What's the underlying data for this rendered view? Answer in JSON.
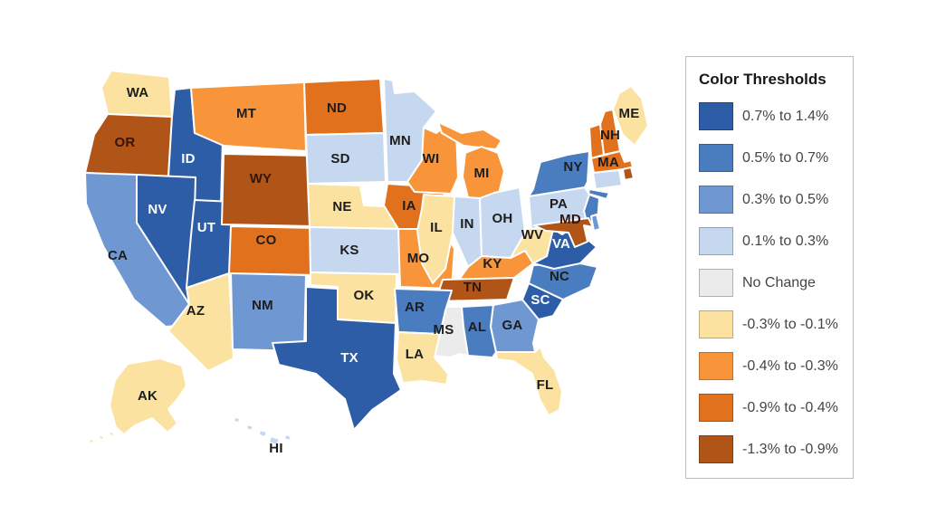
{
  "legend": {
    "title": "Color Thresholds"
  },
  "chart_data": {
    "type": "choropleth",
    "geography": "United States",
    "legend_title": "Color Thresholds",
    "legend_position": "right",
    "buckets": [
      {
        "range": "0.7% to 1.4%",
        "color": "#2d5da6"
      },
      {
        "range": "0.5% to 0.7%",
        "color": "#4a7cc0"
      },
      {
        "range": "0.3% to 0.5%",
        "color": "#6f98d3"
      },
      {
        "range": "0.1% to 0.3%",
        "color": "#c5d8ef"
      },
      {
        "range": "No Change",
        "color": "#ebebeb"
      },
      {
        "range": "-0.3% to -0.1%",
        "color": "#fbe2a0"
      },
      {
        "range": "-0.4% to -0.3%",
        "color": "#f8953a"
      },
      {
        "range": "-0.9% to -0.4%",
        "color": "#e2711e"
      },
      {
        "range": "-1.3% to -0.9%",
        "color": "#b05417"
      }
    ],
    "states": [
      {
        "abbr": "WA",
        "range": "-0.3% to -0.1%"
      },
      {
        "abbr": "OR",
        "range": "-1.3% to -0.9%"
      },
      {
        "abbr": "CA",
        "range": "0.3% to 0.5%"
      },
      {
        "abbr": "ID",
        "range": "0.7% to 1.4%"
      },
      {
        "abbr": "NV",
        "range": "0.7% to 1.4%"
      },
      {
        "abbr": "UT",
        "range": "0.7% to 1.4%"
      },
      {
        "abbr": "AZ",
        "range": "-0.3% to -0.1%"
      },
      {
        "abbr": "MT",
        "range": "-0.4% to -0.3%"
      },
      {
        "abbr": "WY",
        "range": "-1.3% to -0.9%"
      },
      {
        "abbr": "CO",
        "range": "-0.9% to -0.4%"
      },
      {
        "abbr": "NM",
        "range": "0.3% to 0.5%"
      },
      {
        "abbr": "ND",
        "range": "-0.9% to -0.4%"
      },
      {
        "abbr": "SD",
        "range": "0.1% to 0.3%"
      },
      {
        "abbr": "NE",
        "range": "-0.3% to -0.1%"
      },
      {
        "abbr": "KS",
        "range": "0.1% to 0.3%"
      },
      {
        "abbr": "OK",
        "range": "-0.3% to -0.1%"
      },
      {
        "abbr": "TX",
        "range": "0.7% to 1.4%"
      },
      {
        "abbr": "MN",
        "range": "0.1% to 0.3%"
      },
      {
        "abbr": "IA",
        "range": "-0.9% to -0.4%"
      },
      {
        "abbr": "MO",
        "range": "-0.4% to -0.3%"
      },
      {
        "abbr": "WI",
        "range": "-0.4% to -0.3%"
      },
      {
        "abbr": "IL",
        "range": "-0.3% to -0.1%"
      },
      {
        "abbr": "MI",
        "range": "-0.4% to -0.3%"
      },
      {
        "abbr": "IN",
        "range": "0.1% to 0.3%"
      },
      {
        "abbr": "OH",
        "range": "0.1% to 0.3%"
      },
      {
        "abbr": "KY",
        "range": "-0.4% to -0.3%"
      },
      {
        "abbr": "TN",
        "range": "-1.3% to -0.9%"
      },
      {
        "abbr": "MS",
        "range": "No Change"
      },
      {
        "abbr": "AR",
        "range": "0.5% to 0.7%"
      },
      {
        "abbr": "LA",
        "range": "-0.3% to -0.1%"
      },
      {
        "abbr": "AL",
        "range": "0.5% to 0.7%"
      },
      {
        "abbr": "GA",
        "range": "0.3% to 0.5%"
      },
      {
        "abbr": "FL",
        "range": "-0.3% to -0.1%"
      },
      {
        "abbr": "SC",
        "range": "0.7% to 1.4%"
      },
      {
        "abbr": "NC",
        "range": "0.5% to 0.7%"
      },
      {
        "abbr": "VA",
        "range": "0.7% to 1.4%"
      },
      {
        "abbr": "WV",
        "range": "-0.3% to -0.1%"
      },
      {
        "abbr": "PA",
        "range": "0.1% to 0.3%"
      },
      {
        "abbr": "NY",
        "range": "0.5% to 0.7%"
      },
      {
        "abbr": "NJ",
        "range": "0.5% to 0.7%",
        "show_label": false
      },
      {
        "abbr": "MD",
        "range": "-1.3% to -0.9%"
      },
      {
        "abbr": "DE",
        "range": "0.3% to 0.5%",
        "show_label": false
      },
      {
        "abbr": "VT",
        "range": "-0.9% to -0.4%",
        "show_label": false
      },
      {
        "abbr": "NH",
        "range": "-0.9% to -0.4%"
      },
      {
        "abbr": "MA",
        "range": "-0.9% to -0.4%"
      },
      {
        "abbr": "RI",
        "range": "-1.3% to -0.9%",
        "show_label": false
      },
      {
        "abbr": "CT",
        "range": "0.1% to 0.3%",
        "show_label": false
      },
      {
        "abbr": "ME",
        "range": "-0.3% to -0.1%"
      },
      {
        "abbr": "AK",
        "range": "-0.3% to -0.1%"
      },
      {
        "abbr": "HI",
        "range": "0.1% to 0.3%"
      }
    ]
  }
}
